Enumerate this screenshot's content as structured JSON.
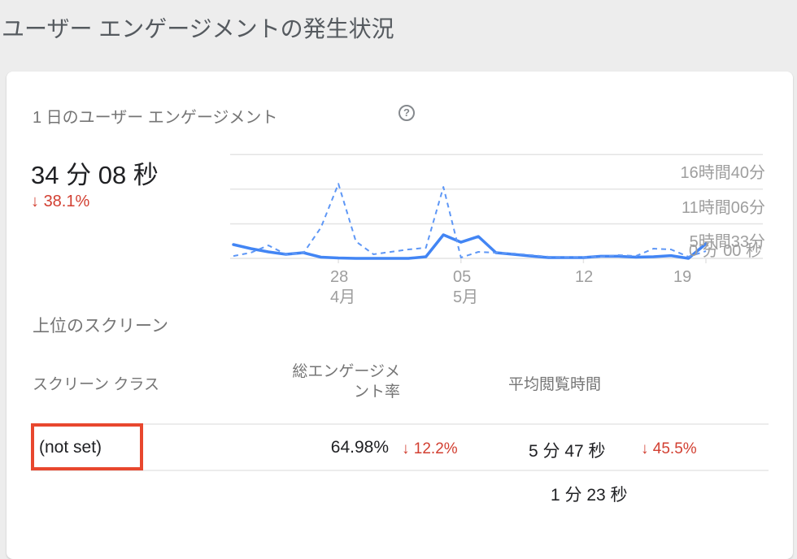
{
  "page_title": "ユーザー エンゲージメントの発生状況",
  "card": {
    "header": {
      "title": "1 日のユーザー エンゲージメント",
      "help_icon": "?"
    },
    "metric": {
      "value": "34 分 08 秒",
      "delta_arrow": "↓",
      "delta": "38.1%",
      "trend": "down"
    }
  },
  "chart_data": {
    "type": "line",
    "title": "1 日のユーザー エンゲージメント",
    "unit": "minutes",
    "ylim": [
      0,
      1000
    ],
    "grid": "horizontal",
    "legend": "none",
    "yticks": [
      {
        "value": 0,
        "label": "0 分 00 秒"
      },
      {
        "value": 333,
        "label": "5時間33分"
      },
      {
        "value": 667,
        "label": "11時間06分"
      },
      {
        "value": 1000,
        "label": "16時間40分"
      }
    ],
    "x": [
      "4/22",
      "4/23",
      "4/24",
      "4/25",
      "4/26",
      "4/27",
      "4/28",
      "4/29",
      "4/30",
      "5/1",
      "5/2",
      "5/3",
      "5/4",
      "5/5",
      "5/6",
      "5/7",
      "5/8",
      "5/9",
      "5/10",
      "5/11",
      "5/12",
      "5/13",
      "5/14",
      "5/15",
      "5/16",
      "5/17",
      "5/18",
      "5/19"
    ],
    "xticks": [
      {
        "index": 6,
        "day": "28",
        "month": "4月"
      },
      {
        "index": 13,
        "day": "05",
        "month": "5月"
      },
      {
        "index": 20,
        "day": "12",
        "month": ""
      },
      {
        "index": 27,
        "day": "19",
        "month": ""
      }
    ],
    "series": [
      {
        "name": "current_period",
        "style": "solid",
        "values": [
          133,
          94,
          63,
          39,
          55,
          12,
          4,
          0,
          0,
          0,
          0,
          16,
          227,
          156,
          211,
          55,
          39,
          23,
          8,
          8,
          8,
          20,
          20,
          12,
          16,
          27,
          0,
          141
        ]
      },
      {
        "name": "previous_period",
        "style": "dashed",
        "values": [
          23,
          55,
          125,
          39,
          51,
          297,
          719,
          164,
          39,
          63,
          86,
          102,
          688,
          8,
          63,
          55,
          47,
          31,
          16,
          12,
          12,
          16,
          31,
          23,
          94,
          86,
          16,
          70
        ]
      }
    ]
  },
  "table": {
    "section_title": "上位のスクリーン",
    "columns": [
      {
        "label": "スクリーン クラス",
        "lines": [
          "スクリーン クラス"
        ]
      },
      {
        "label": "総エンゲージメント率",
        "lines": [
          "総エンゲージメ",
          "ント率"
        ]
      },
      {
        "label": "平均閲覧時間",
        "lines": [
          "平均閲覧時間"
        ]
      }
    ],
    "rows": [
      {
        "screen_class": "(not set)",
        "highlighted": true,
        "total_engagement_rate": "64.98%",
        "engagement_delta_arrow": "↓",
        "engagement_delta": "12.2%",
        "avg_view_time": "5 分 47 秒",
        "view_time_delta_arrow": "↓",
        "view_time_delta": "45.5%"
      }
    ],
    "partial_next_row_value": "1 分 23 秒"
  },
  "colors": {
    "background": "#ededed",
    "card": "#ffffff",
    "accent_blue": "#4285f4",
    "previous_blue": "#5e97f6",
    "negative_red": "#d23f31",
    "highlight_box": "#e8472e",
    "grid_line": "#e4e4e4",
    "axis_text": "#9e9e9e",
    "muted_text": "#757575",
    "title_text": "#555a5f",
    "primary_text": "#202124"
  }
}
